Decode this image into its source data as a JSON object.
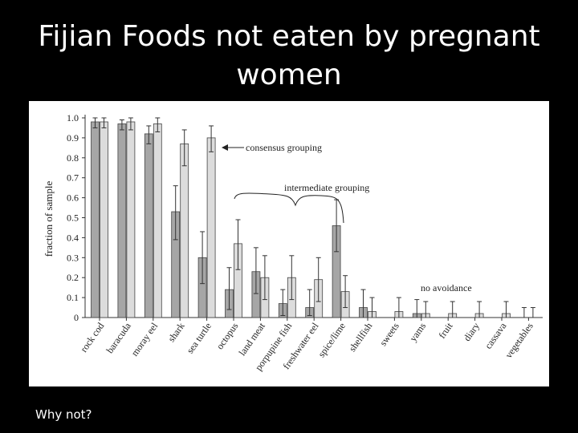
{
  "slide": {
    "title_line1": "Fijian Foods not eaten by pregnant",
    "title_line2": "women",
    "note": "Why not?"
  },
  "chart_data": {
    "type": "bar",
    "title": "",
    "xlabel": "",
    "ylabel": "fraction of sample",
    "ylim": [
      0,
      1.0
    ],
    "yticks": [
      "0",
      "0.1",
      "0.2",
      "0.3",
      "0.4",
      "0.5",
      "0.6",
      "0.7",
      "0.8",
      "0.9",
      "1.0"
    ],
    "grid": false,
    "legend": "none",
    "colors": {
      "dark": "#a6a6a6",
      "light": "#dcdcdc",
      "stroke": "#444444"
    },
    "categories": [
      "rock cod",
      "baracuda",
      "moray eel",
      "shark",
      "sea turtle",
      "octopus",
      "land meat",
      "porpupine fish",
      "freshwater eel",
      "spice/lime",
      "shellfish",
      "sweets",
      "yams",
      "fruit",
      "diary",
      "cassava",
      "vegetables"
    ],
    "series": [
      {
        "values": [
          0.98,
          0.97,
          0.92,
          0.53,
          0.3,
          0.14,
          0.23,
          0.07,
          0.05,
          0.46,
          0.05,
          0.0,
          0.02,
          0.0,
          0.0,
          0.0,
          0.0
        ],
        "err_low": [
          0.95,
          0.94,
          0.87,
          0.39,
          0.17,
          0.04,
          0.12,
          0.01,
          0.01,
          0.33,
          0.0,
          0.0,
          0.0,
          0.0,
          0.0,
          0.0,
          0.0
        ],
        "err_high": [
          1.0,
          0.99,
          0.96,
          0.66,
          0.43,
          0.25,
          0.35,
          0.14,
          0.14,
          0.59,
          0.14,
          0.0,
          0.09,
          0.0,
          0.0,
          0.0,
          0.05
        ]
      },
      {
        "values": [
          0.98,
          0.98,
          0.97,
          0.87,
          0.9,
          0.37,
          0.2,
          0.2,
          0.19,
          0.13,
          0.03,
          0.03,
          0.02,
          0.02,
          0.02,
          0.02,
          0.0
        ],
        "err_low": [
          0.95,
          0.94,
          0.93,
          0.76,
          0.83,
          0.24,
          0.09,
          0.09,
          0.08,
          0.05,
          0.0,
          0.0,
          0.0,
          0.0,
          0.0,
          0.0,
          0.0
        ],
        "err_high": [
          1.0,
          1.0,
          1.0,
          0.94,
          0.96,
          0.49,
          0.31,
          0.31,
          0.3,
          0.21,
          0.1,
          0.1,
          0.08,
          0.08,
          0.08,
          0.08,
          0.05
        ]
      }
    ],
    "annotations": {
      "consensus": "consensus grouping",
      "intermediate": "intermediate grouping",
      "none": "no avoidance"
    }
  }
}
